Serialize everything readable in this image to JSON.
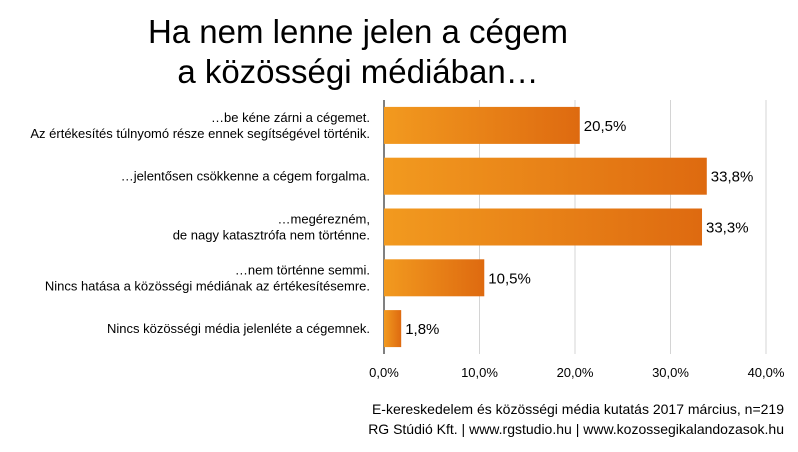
{
  "title_lines": [
    "Ha nem lenne jelen a cégem",
    "a közösségi médiában…"
  ],
  "chart_data": {
    "type": "bar",
    "orientation": "horizontal",
    "categories": [
      [
        "…be kéne zárni a cégemet.",
        "Az értékesítés túlnyomó része ennek segítségével történik."
      ],
      [
        "…jelentősen csökkenne a cégem forgalma."
      ],
      [
        "…megérezném,",
        "de nagy katasztrófa nem történne."
      ],
      [
        "…nem történne semmi.",
        "Nincs hatása a közösségi médiának az értékesítésemre."
      ],
      [
        "Nincs közösségi média jelenléte a cégemnek."
      ]
    ],
    "values": [
      20.5,
      33.8,
      33.3,
      10.5,
      1.8
    ],
    "value_labels": [
      "20,5%",
      "33,8%",
      "33,3%",
      "10,5%",
      "1,8%"
    ],
    "x_ticks": [
      0,
      10,
      20,
      30,
      40
    ],
    "x_tick_labels": [
      "0,0%",
      "10,0%",
      "20,0%",
      "30,0%",
      "40,0%"
    ],
    "xlim": [
      0,
      40
    ],
    "grid": true,
    "colors": {
      "bar_start": "#F29A1F",
      "bar_end": "#DE6A10",
      "grid": "#D4D4D4",
      "axis": "#000000"
    }
  },
  "footer": [
    "E-kereskedelem és közösségi média kutatás 2017 március, n=219",
    "RG Stúdió Kft. | www.rgstudio.hu | www.kozossegikalandozasok.hu"
  ]
}
